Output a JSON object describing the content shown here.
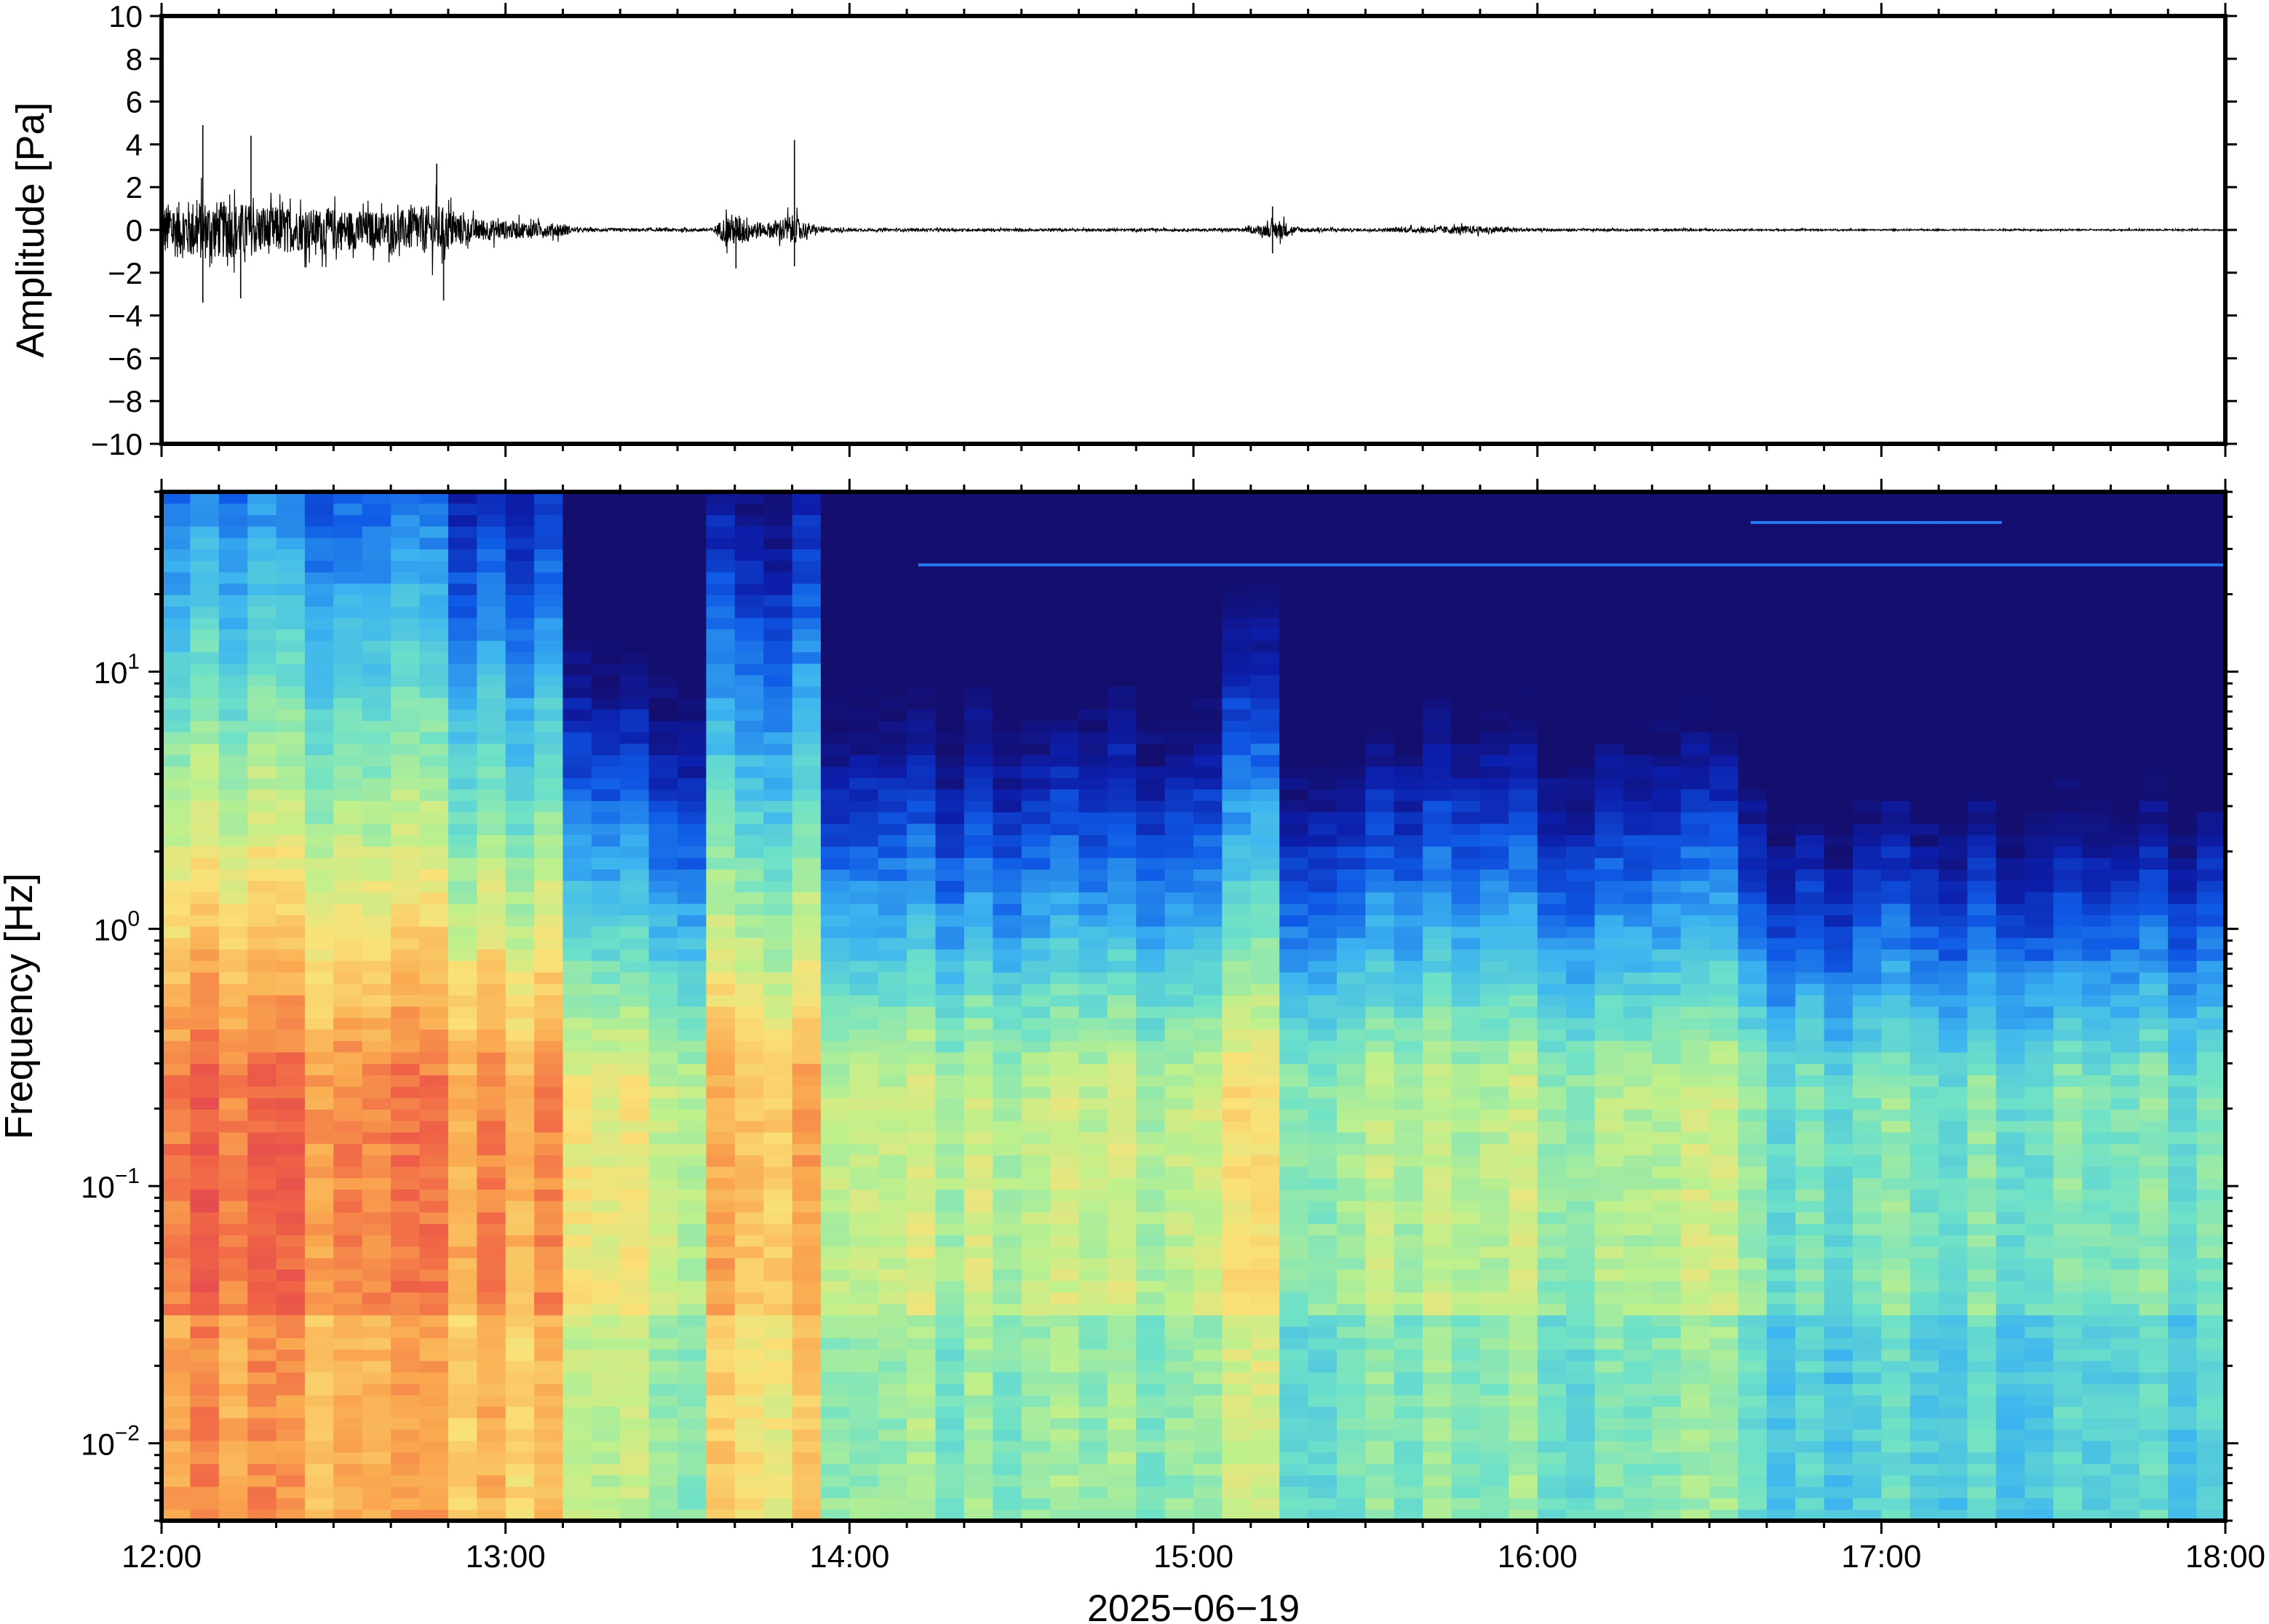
{
  "chart_data": [
    {
      "type": "line",
      "title": "",
      "ylabel": "Amplitude [Pa]",
      "xlabel": "",
      "ylim": [
        -10,
        10
      ],
      "yticks": [
        10,
        8,
        6,
        4,
        2,
        0,
        -2,
        -4,
        -6,
        -8,
        -10
      ],
      "ytick_labels": [
        "10",
        "8",
        "6",
        "4",
        "2",
        "0",
        "−2",
        "−4",
        "−6",
        "−8",
        "−10"
      ],
      "x_range_hours": [
        12,
        18
      ],
      "grid": false,
      "series": [
        {
          "color": "#000000",
          "envelope": {
            "time_hours": [
              12.0,
              12.1,
              12.2,
              12.3,
              12.4,
              12.5,
              12.6,
              12.7,
              12.8,
              12.85,
              12.9,
              13.0,
              13.1,
              13.17,
              13.2,
              13.4,
              13.6,
              13.65,
              13.7,
              13.75,
              13.8,
              13.83,
              13.9,
              14.0,
              14.5,
              15.0,
              15.15,
              15.22,
              15.25,
              15.3,
              15.5,
              15.7,
              15.8,
              15.9,
              16.0,
              16.5,
              17.0,
              17.5,
              18.0
            ],
            "amplitude_pa": [
              2.2,
              2.6,
              2.4,
              2.1,
              1.8,
              1.8,
              1.6,
              1.7,
              2.2,
              1.6,
              1.0,
              0.8,
              0.6,
              0.55,
              0.15,
              0.12,
              0.15,
              1.4,
              1.2,
              0.5,
              1.0,
              1.3,
              0.3,
              0.12,
              0.1,
              0.1,
              0.15,
              0.6,
              0.9,
              0.2,
              0.1,
              0.3,
              0.35,
              0.25,
              0.1,
              0.08,
              0.06,
              0.06,
              0.06
            ]
          },
          "spikes": [
            {
              "time_hours": 12.12,
              "amplitude_pa": 4.9
            },
            {
              "time_hours": 12.12,
              "amplitude_pa": -3.4
            },
            {
              "time_hours": 12.26,
              "amplitude_pa": 4.4
            },
            {
              "time_hours": 12.23,
              "amplitude_pa": -3.2
            },
            {
              "time_hours": 12.8,
              "amplitude_pa": 3.1
            },
            {
              "time_hours": 12.82,
              "amplitude_pa": -3.3
            },
            {
              "time_hours": 13.84,
              "amplitude_pa": 4.2
            },
            {
              "time_hours": 13.84,
              "amplitude_pa": -1.7
            },
            {
              "time_hours": 13.67,
              "amplitude_pa": -1.8
            },
            {
              "time_hours": 15.23,
              "amplitude_pa": 1.1
            },
            {
              "time_hours": 15.23,
              "amplitude_pa": -1.1
            }
          ]
        }
      ]
    },
    {
      "type": "heatmap",
      "title": "",
      "ylabel": "Frequency [Hz]",
      "xlabel": "2025−06−19",
      "scale_y": "log",
      "ylim": [
        0.005,
        50
      ],
      "ytick_values": [
        10,
        1,
        0.1,
        0.01
      ],
      "ytick_labels": [
        {
          "base": "10",
          "exp": "1"
        },
        {
          "base": "10",
          "exp": "0"
        },
        {
          "base": "10",
          "exp": "−1"
        },
        {
          "base": "10",
          "exp": "−2"
        }
      ],
      "xtick_hours": [
        12,
        13,
        14,
        15,
        16,
        17,
        18
      ],
      "xtick_labels": [
        "12:00",
        "13:00",
        "14:00",
        "15:00",
        "16:00",
        "17:00",
        "18:00"
      ],
      "colormap": "spectral (dark blue low → cyan → yellow → red high)",
      "grid": false,
      "intensity_profile": {
        "segments_hours": [
          [
            12.0,
            12.85
          ],
          [
            12.85,
            13.2
          ],
          [
            13.2,
            13.6
          ],
          [
            13.6,
            13.88
          ],
          [
            13.88,
            15.12
          ],
          [
            15.12,
            15.28
          ],
          [
            15.28,
            15.7
          ],
          [
            15.7,
            15.95
          ],
          [
            15.95,
            16.55
          ],
          [
            16.55,
            18.0
          ]
        ],
        "relative_level": [
          1.0,
          0.85,
          0.45,
          0.8,
          0.35,
          0.6,
          0.3,
          0.4,
          0.3,
          0.15
        ]
      },
      "tonal_lines": [
        {
          "frequency_hz": 38,
          "time_hours": [
            16.62,
            17.35
          ]
        },
        {
          "frequency_hz": 26,
          "time_hours": [
            14.2,
            18.0
          ]
        }
      ]
    }
  ]
}
